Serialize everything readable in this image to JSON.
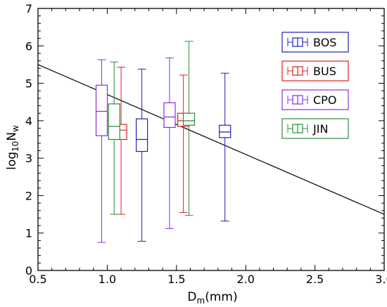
{
  "chart_data": {
    "type": "box",
    "xlabel_main": "D",
    "xlabel_sub": "m",
    "xlabel_unit": "(mm)",
    "ylabel_prefix": "log",
    "ylabel_sub1": "10",
    "ylabel_main": "N",
    "ylabel_sub2": "w",
    "xlim": [
      0.5,
      3.0
    ],
    "ylim": [
      0,
      7
    ],
    "xticks": [
      "0.5",
      "1.0",
      "1.5",
      "2.0",
      "2.5",
      "3.0"
    ],
    "yticks": [
      "0",
      "1",
      "2",
      "3",
      "4",
      "5",
      "6",
      "7"
    ],
    "grid": false,
    "legend_position": "top-right",
    "series": [
      {
        "name": "BOS",
        "color": "#1f1fbf",
        "boxes": [
          {
            "x": 1.25,
            "min": 0.78,
            "q1": 3.18,
            "median": 3.5,
            "q3": 4.05,
            "max": 5.38
          },
          {
            "x": 1.85,
            "min": 1.32,
            "q1": 3.55,
            "median": 3.7,
            "q3": 3.88,
            "max": 5.27
          }
        ]
      },
      {
        "name": "BUS",
        "color": "#e02020",
        "boxes": [
          {
            "x": 1.1,
            "min": 1.5,
            "q1": 3.5,
            "median": 3.75,
            "q3": 3.9,
            "max": 5.43
          },
          {
            "x": 1.55,
            "min": 1.55,
            "q1": 3.85,
            "median": 4.0,
            "q3": 4.2,
            "max": 5.22
          }
        ]
      },
      {
        "name": "CPO",
        "color": "#8a2be2",
        "boxes": [
          {
            "x": 0.96,
            "min": 0.75,
            "q1": 3.6,
            "median": 4.25,
            "q3": 4.95,
            "max": 5.63
          },
          {
            "x": 1.45,
            "min": 1.12,
            "q1": 3.82,
            "median": 4.1,
            "q3": 4.48,
            "max": 5.68
          }
        ]
      },
      {
        "name": "JIN",
        "color": "#2e8b3e",
        "boxes": [
          {
            "x": 1.05,
            "min": 1.5,
            "q1": 3.5,
            "median": 3.85,
            "q3": 4.45,
            "max": 5.57
          },
          {
            "x": 1.59,
            "min": 1.47,
            "q1": 3.88,
            "median": 4.0,
            "q3": 4.2,
            "max": 6.12
          }
        ]
      }
    ],
    "fit_line": {
      "x": [
        0.5,
        3.0
      ],
      "y": [
        5.5,
        1.5
      ],
      "color": "#000000"
    }
  }
}
